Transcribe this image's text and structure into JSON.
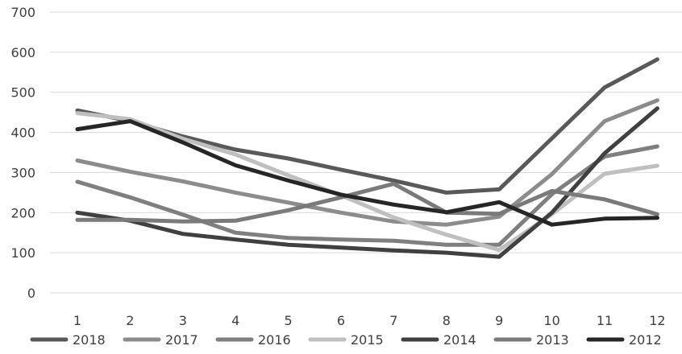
{
  "chart_data": {
    "type": "line",
    "title": "",
    "xlabel": "",
    "ylabel": "",
    "categories": [
      "1",
      "2",
      "3",
      "4",
      "5",
      "6",
      "7",
      "8",
      "9",
      "10",
      "11",
      "12"
    ],
    "ylim": [
      0,
      700
    ],
    "yticks": [
      "0",
      "100",
      "200",
      "300",
      "400",
      "500",
      "600",
      "700"
    ],
    "grid": "horizontal",
    "legend_position": "bottom",
    "series": [
      {
        "name": "2018",
        "color": "#595959",
        "values": [
          455,
          428,
          390,
          357,
          335,
          307,
          280,
          250,
          258,
          385,
          512,
          582
        ]
      },
      {
        "name": "2017",
        "color": "#8c8c8c",
        "values": [
          330,
          302,
          278,
          250,
          225,
          200,
          178,
          170,
          190,
          296,
          428,
          480
        ]
      },
      {
        "name": "2016",
        "color": "#7f7f7f",
        "values": [
          277,
          238,
          195,
          150,
          137,
          133,
          130,
          120,
          120,
          246,
          340,
          365
        ]
      },
      {
        "name": "2015",
        "color": "#bfbfbf",
        "values": [
          448,
          433,
          384,
          345,
          293,
          243,
          188,
          145,
          107,
          196,
          297,
          317
        ]
      },
      {
        "name": "2014",
        "color": "#404040",
        "values": [
          200,
          180,
          147,
          133,
          120,
          113,
          106,
          100,
          90,
          200,
          348,
          460
        ]
      },
      {
        "name": "2013",
        "color": "#7a7a7a",
        "values": [
          182,
          182,
          178,
          180,
          206,
          238,
          272,
          200,
          197,
          254,
          233,
          196
        ]
      },
      {
        "name": "2012",
        "color": "#262626",
        "values": [
          408,
          428,
          375,
          318,
          280,
          245,
          220,
          201,
          226,
          170,
          185,
          187
        ]
      }
    ]
  }
}
